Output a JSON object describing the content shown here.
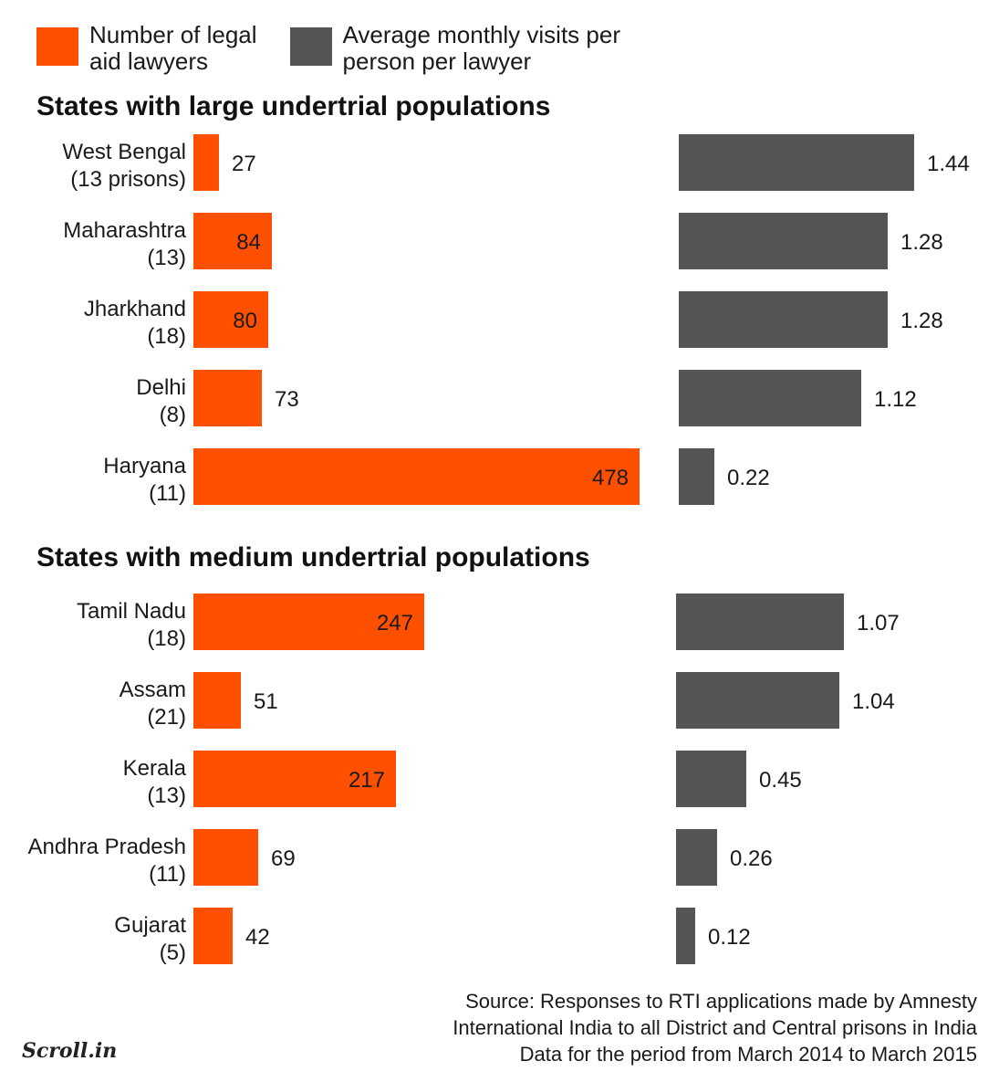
{
  "legend": {
    "lawyers": {
      "label": "Number of legal\naid lawyers",
      "color": "#ff5000"
    },
    "visits": {
      "label": "Average monthly visits per\nperson per lawyer",
      "color": "#555555"
    }
  },
  "chart_data": {
    "type": "bar",
    "series": [
      {
        "name": "Number of legal aid lawyers",
        "color": "#ff5000"
      },
      {
        "name": "Average monthly visits per person per lawyer",
        "color": "#555555"
      }
    ],
    "groups": [
      {
        "title": "States with large undertrial populations",
        "rows": [
          {
            "state": "West Bengal",
            "prisons": "(13 prisons)",
            "lawyers": 27,
            "lawyers_label": "27",
            "visits": 1.44,
            "visits_label": "1.44"
          },
          {
            "state": "Maharashtra",
            "prisons": "(13)",
            "lawyers": 84,
            "lawyers_label": "84",
            "visits": 1.28,
            "visits_label": "1.28"
          },
          {
            "state": "Jharkhand",
            "prisons": "(18)",
            "lawyers": 80,
            "lawyers_label": "80",
            "visits": 1.28,
            "visits_label": "1.28"
          },
          {
            "state": "Delhi",
            "prisons": "(8)",
            "lawyers": 73,
            "lawyers_label": "73",
            "visits": 1.12,
            "visits_label": "1.12"
          },
          {
            "state": "Haryana",
            "prisons": "(11)",
            "lawyers": 478,
            "lawyers_label": "478",
            "visits": 0.22,
            "visits_label": "0.22"
          }
        ]
      },
      {
        "title": "States with medium undertrial populations",
        "rows": [
          {
            "state": "Tamil Nadu",
            "prisons": "(18)",
            "lawyers": 247,
            "lawyers_label": "247",
            "visits": 1.07,
            "visits_label": "1.07"
          },
          {
            "state": "Assam",
            "prisons": "(21)",
            "lawyers": 51,
            "lawyers_label": "51",
            "visits": 1.04,
            "visits_label": "1.04"
          },
          {
            "state": "Kerala",
            "prisons": "(13)",
            "lawyers": 217,
            "lawyers_label": "217",
            "visits": 0.45,
            "visits_label": "0.45"
          },
          {
            "state": "Andhra Pradesh",
            "prisons": "(11)",
            "lawyers": 69,
            "lawyers_label": "69",
            "visits": 0.26,
            "visits_label": "0.26"
          },
          {
            "state": "Gujarat",
            "prisons": "(5)",
            "lawyers": 42,
            "lawyers_label": "42",
            "visits": 0.12,
            "visits_label": "0.12"
          }
        ]
      }
    ]
  },
  "source": "Source: Responses to RTI applications made by Amnesty\nInternational India to all District and Central prisons in India\nData for the period from March 2014 to March 2015",
  "logo": "Scroll.in"
}
